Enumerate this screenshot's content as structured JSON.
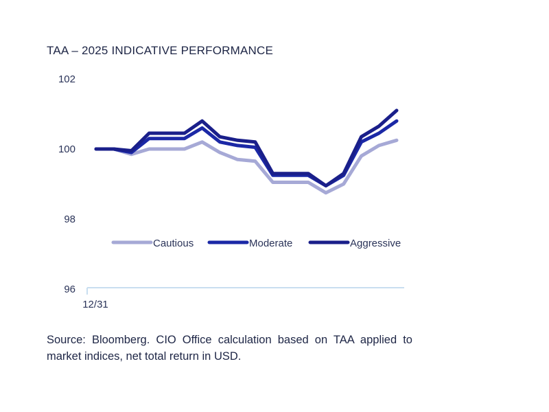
{
  "title": "TAA – 2025 INDICATIVE PERFORMANCE",
  "source_note": "Source: Bloomberg. CIO Office calculation based on TAA applied to market indices, net total return in USD.",
  "chart_data": {
    "type": "line",
    "title": "TAA – 2025 INDICATIVE PERFORMANCE",
    "xlabel": "",
    "ylabel": "",
    "x_tick_labels": [
      "12/31"
    ],
    "y_ticks": [
      102,
      100,
      98,
      96
    ],
    "ylim": [
      96,
      102
    ],
    "grid": false,
    "legend_position": "bottom-center (inside plot)",
    "series": [
      {
        "name": "Cautious",
        "color": "#a6a9d6",
        "values": [
          100.0,
          100.0,
          99.85,
          100.0,
          100.0,
          100.0,
          100.2,
          99.9,
          99.7,
          99.65,
          99.05,
          99.05,
          99.05,
          98.75,
          99.0,
          99.8,
          100.1,
          100.25
        ]
      },
      {
        "name": "Moderate",
        "color": "#1b28a6",
        "values": [
          100.0,
          100.0,
          99.9,
          100.3,
          100.3,
          100.3,
          100.6,
          100.2,
          100.1,
          100.05,
          99.25,
          99.25,
          99.25,
          98.95,
          99.25,
          100.2,
          100.45,
          100.8
        ]
      },
      {
        "name": "Aggressive",
        "color": "#1a1f8a",
        "values": [
          100.0,
          100.0,
          99.95,
          100.45,
          100.45,
          100.45,
          100.8,
          100.35,
          100.25,
          100.2,
          99.3,
          99.3,
          99.3,
          98.95,
          99.3,
          100.35,
          100.65,
          101.1
        ]
      }
    ],
    "axis_color": "#c8def0"
  }
}
